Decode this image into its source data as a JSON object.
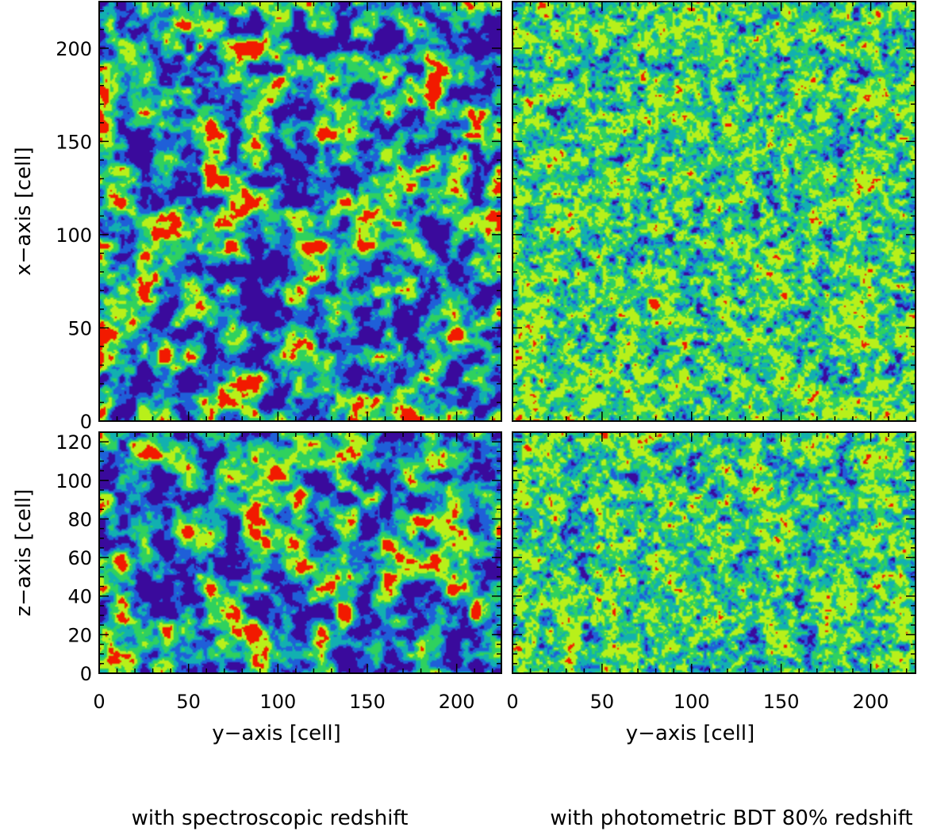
{
  "chart_data": [
    {
      "type": "heatmap",
      "panel": "top-left",
      "xlabel": "",
      "ylabel": "x−axis [cell]",
      "xlim": [
        0,
        225
      ],
      "ylim": [
        0,
        225
      ],
      "x_ticks": [],
      "y_ticks": [
        0,
        50,
        100,
        150,
        200
      ],
      "field": {
        "dark": 0.2,
        "blue": 0.22,
        "teal": 0.2,
        "green": 0.2,
        "yellow": 0.13,
        "red": 0.05,
        "grain": "coarse",
        "streaks": false
      }
    },
    {
      "type": "heatmap",
      "panel": "top-right",
      "xlabel": "",
      "ylabel": "",
      "xlim": [
        0,
        225
      ],
      "ylim": [
        0,
        225
      ],
      "x_ticks": [],
      "y_ticks": [],
      "field": {
        "dark": 0.02,
        "blue": 0.08,
        "teal": 0.25,
        "green": 0.35,
        "yellow": 0.29,
        "red": 0.01,
        "grain": "fine",
        "streaks": false
      }
    },
    {
      "type": "heatmap",
      "panel": "bottom-left",
      "xlabel": "y−axis [cell]",
      "ylabel": "z−axis [cell]",
      "xlim": [
        0,
        225
      ],
      "ylim": [
        0,
        125
      ],
      "x_ticks": [
        0,
        50,
        100,
        150,
        200
      ],
      "y_ticks": [
        0,
        20,
        40,
        60,
        80,
        100,
        120
      ],
      "field": {
        "dark": 0.2,
        "blue": 0.22,
        "teal": 0.2,
        "green": 0.2,
        "yellow": 0.13,
        "red": 0.05,
        "grain": "coarse",
        "streaks": false
      }
    },
    {
      "type": "heatmap",
      "panel": "bottom-right",
      "xlabel": "y−axis [cell]",
      "ylabel": "",
      "xlim": [
        0,
        225
      ],
      "ylim": [
        0,
        125
      ],
      "x_ticks": [
        0,
        50,
        100,
        150,
        200
      ],
      "y_ticks": [],
      "field": {
        "dark": 0.02,
        "blue": 0.1,
        "teal": 0.26,
        "green": 0.33,
        "yellow": 0.28,
        "red": 0.01,
        "grain": "fine",
        "streaks": true
      }
    }
  ],
  "colormap": [
    "#3a0a9c",
    "#1f5fd8",
    "#12b0b0",
    "#2fd15e",
    "#b8f01a",
    "#f21a00"
  ],
  "captions": {
    "left": "with spectroscopic redshift",
    "right": "with photometric BDT 80% redshift"
  }
}
